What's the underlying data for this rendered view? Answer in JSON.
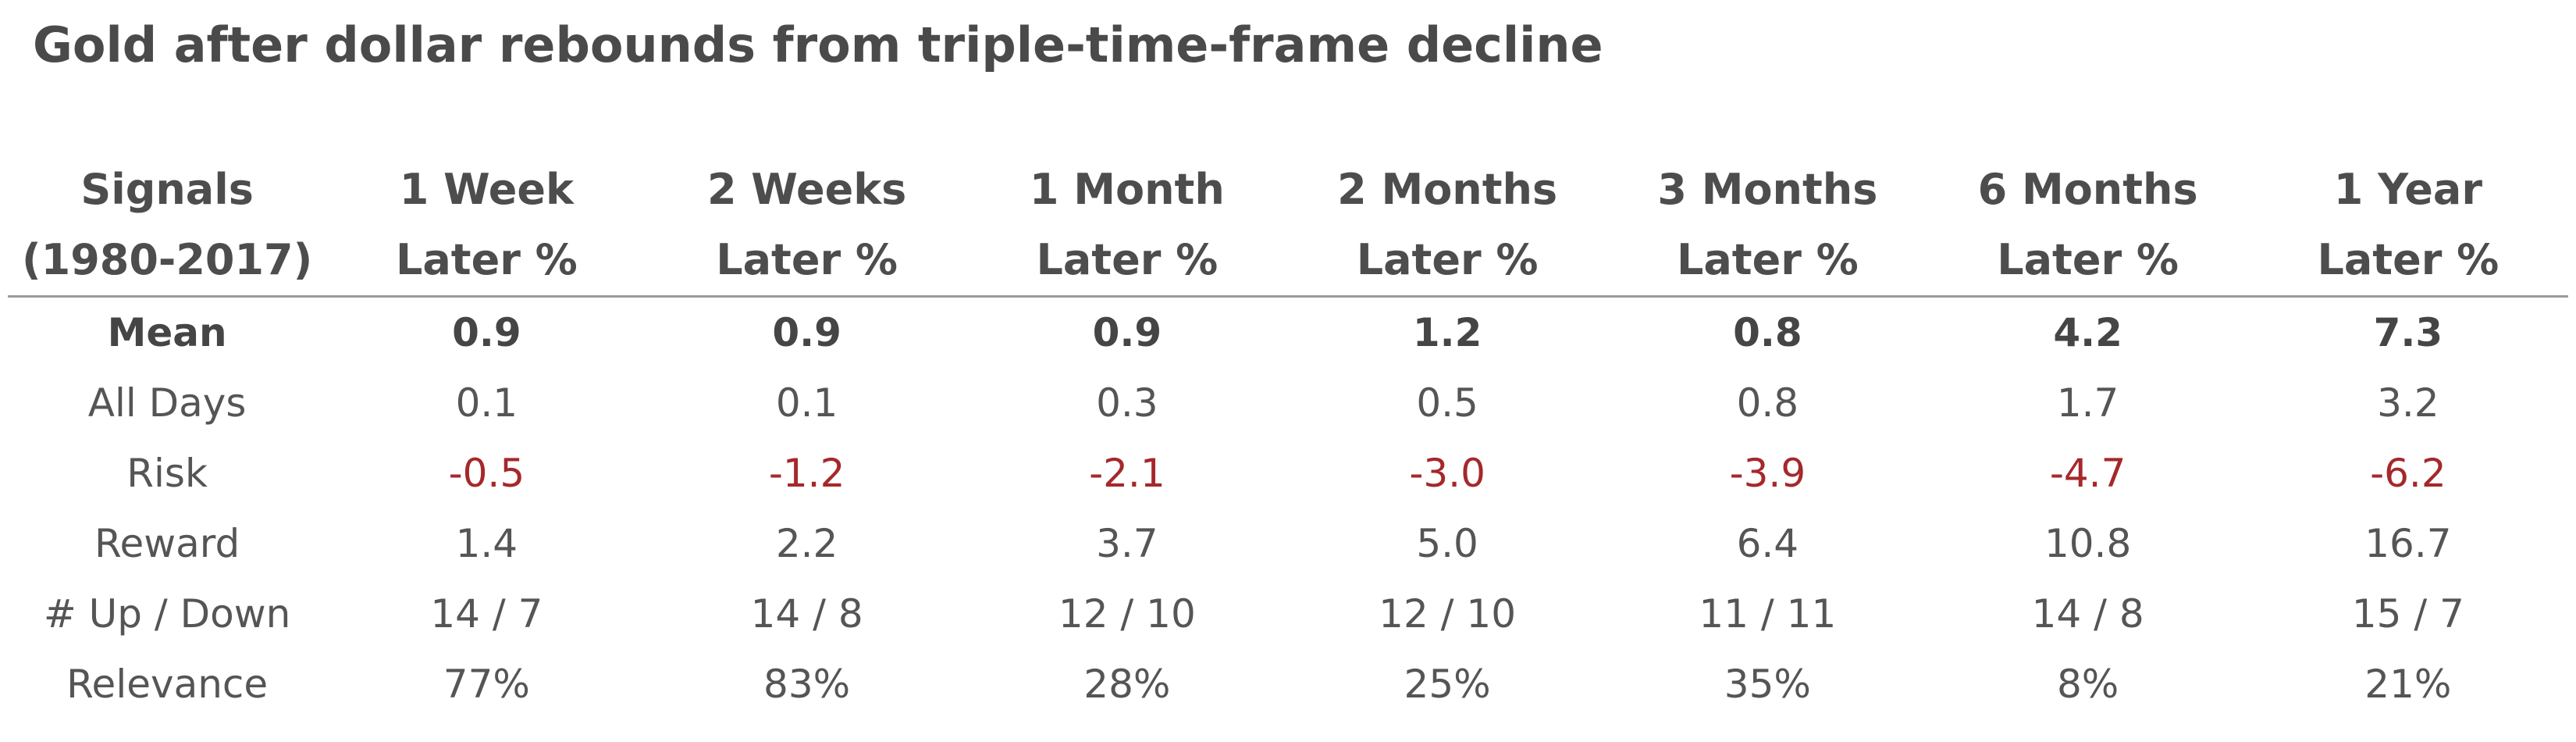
{
  "title": "Gold after dollar rebounds from triple-time-frame decline",
  "colors": {
    "text": "#555555",
    "risk_negative": "#a5282b",
    "rule": "#9a9a9a"
  },
  "table": {
    "headers": [
      {
        "line1": "Signals",
        "line2": "(1980-2017)"
      },
      {
        "line1": "1 Week",
        "line2": "Later %"
      },
      {
        "line1": "2 Weeks",
        "line2": "Later %"
      },
      {
        "line1": "1 Month",
        "line2": "Later %"
      },
      {
        "line1": "2 Months",
        "line2": "Later %"
      },
      {
        "line1": "3 Months",
        "line2": "Later %"
      },
      {
        "line1": "6 Months",
        "line2": "Later %"
      },
      {
        "line1": "1 Year",
        "line2": "Later %"
      }
    ],
    "rows": [
      {
        "label": "Mean",
        "values": [
          "0.9",
          "0.9",
          "0.9",
          "1.2",
          "0.8",
          "4.2",
          "7.3"
        ]
      },
      {
        "label": "All Days",
        "values": [
          "0.1",
          "0.1",
          "0.3",
          "0.5",
          "0.8",
          "1.7",
          "3.2"
        ]
      },
      {
        "label": "Risk",
        "values": [
          "-0.5",
          "-1.2",
          "-2.1",
          "-3.0",
          "-3.9",
          "-4.7",
          "-6.2"
        ]
      },
      {
        "label": "Reward",
        "values": [
          "1.4",
          "2.2",
          "3.7",
          "5.0",
          "6.4",
          "10.8",
          "16.7"
        ]
      },
      {
        "label": "# Up / Down",
        "values": [
          "14 / 7",
          "14 / 8",
          "12 / 10",
          "12 / 10",
          "11 / 11",
          "14 / 8",
          "15 / 7"
        ]
      },
      {
        "label": "Relevance",
        "values": [
          "77%",
          "83%",
          "28%",
          "25%",
          "35%",
          "8%",
          "21%"
        ]
      }
    ]
  }
}
